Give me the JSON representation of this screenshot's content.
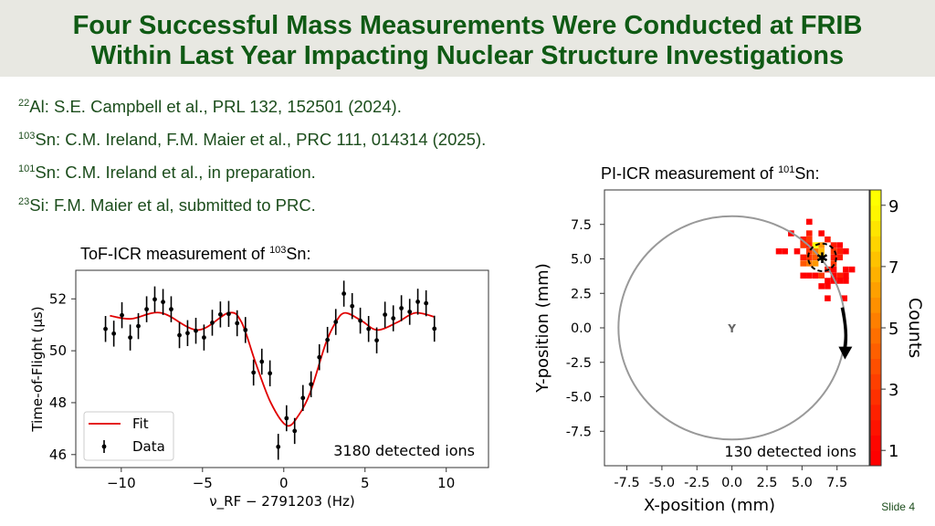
{
  "header": {
    "title_line1": "Four Successful Mass Measurements Were Conducted at FRIB",
    "title_line2": "Within Last Year Impacting Nuclear Structure Investigations"
  },
  "references": [
    {
      "mass": "22",
      "text": "Al: S.E. Campbell et al., PRL 132, 152501 (2024)."
    },
    {
      "mass": "103",
      "text": "Sn: C.M. Ireland, F.M. Maier et al., PRC 111, 014314 (2025)."
    },
    {
      "mass": "101",
      "text": "Sn: C.M. Ireland et al., in preparation."
    },
    {
      "mass": "23",
      "text": "Si: F.M. Maier et al, submitted to PRC."
    }
  ],
  "tof_caption": {
    "text": "ToF-ICR measurement of ",
    "mass": "103",
    "element": "Sn:"
  },
  "pi_caption": {
    "text": "PI-ICR measurement of ",
    "mass": "101",
    "element": "Sn:"
  },
  "slide_number": "Slide 4",
  "colors": {
    "title": "#0f5a14",
    "text": "#1c4d1c",
    "fit": "#e00000",
    "data": "#000000",
    "circle": "#999999"
  },
  "chart_data": [
    {
      "type": "scatter",
      "xlabel": "ν_RF − 2791203 (Hz)",
      "ylabel": "Time-of-Flight (μs)",
      "xlim": [
        -12.8,
        12.6
      ],
      "ylim": [
        45.5,
        53.1
      ],
      "xticks": [
        -10,
        -5,
        0,
        5,
        10
      ],
      "yticks": [
        46,
        48,
        50,
        52
      ],
      "legend": {
        "placement": "bottom-left",
        "entries": [
          "Fit",
          "Data"
        ]
      },
      "annotation": "3180 detected ions",
      "series": [
        {
          "name": "Data",
          "x": [
            -10.97,
            -10.46,
            -9.96,
            -9.45,
            -8.95,
            -8.44,
            -7.94,
            -7.43,
            -6.93,
            -6.42,
            -5.92,
            -5.41,
            -4.91,
            -4.4,
            -3.9,
            -3.39,
            -2.87,
            -2.36,
            -1.86,
            -1.35,
            -0.85,
            -0.34,
            0.17,
            0.67,
            1.18,
            1.68,
            2.19,
            2.69,
            3.2,
            3.7,
            4.21,
            4.71,
            5.22,
            5.72,
            6.23,
            6.74,
            7.24,
            7.75,
            8.25,
            8.76,
            9.27
          ],
          "y": [
            50.84,
            50.66,
            51.37,
            50.51,
            50.95,
            51.6,
            51.98,
            51.88,
            51.6,
            50.6,
            50.68,
            50.77,
            50.51,
            51.08,
            51.4,
            51.42,
            51.06,
            50.8,
            49.16,
            49.58,
            49.13,
            46.3,
            47.4,
            46.91,
            48.18,
            48.71,
            49.75,
            50.42,
            51.11,
            52.2,
            51.72,
            51.16,
            50.84,
            50.4,
            51.39,
            51.25,
            51.64,
            51.5,
            51.89,
            51.83,
            50.85
          ],
          "yerr": 0.5
        },
        {
          "name": "Fit",
          "x": [
            -10.7,
            -9.4,
            -7.55,
            -5.3,
            -3.4,
            -2.6,
            -1.74,
            -0.8,
            0.18,
            0.9,
            1.63,
            2.57,
            3.2,
            3.78,
            4.8,
            5.75,
            7.0,
            8.09,
            9.3
          ],
          "y": [
            51.35,
            51.23,
            51.46,
            50.8,
            51.46,
            51.1,
            49.55,
            48.0,
            47.12,
            47.5,
            48.39,
            50.26,
            51.1,
            51.46,
            51.15,
            50.8,
            51.1,
            51.46,
            51.3
          ]
        }
      ]
    },
    {
      "type": "heatmap",
      "xlabel": "X-position (mm)",
      "ylabel": "Y-position (mm)",
      "xlim": [
        -9.1,
        9.8
      ],
      "ylim": [
        -10,
        10
      ],
      "xticks": [
        "-7.5",
        "-5.0",
        "-2.5",
        "0.0",
        "2.5",
        "5.0",
        "7.5"
      ],
      "yticks": [
        "7.5",
        "5.0",
        "2.5",
        "0.0",
        "-2.5",
        "-5.0",
        "-7.5"
      ],
      "colorbar": {
        "label": "Counts",
        "range": [
          0.5,
          9.5
        ],
        "ticks": [
          1,
          3,
          5,
          7,
          9
        ]
      },
      "annotation": "130 detected ions",
      "circle": {
        "center": [
          0,
          0
        ],
        "radius": 8.1
      },
      "center_marker": [
        0,
        0
      ],
      "spot_center": [
        6.44,
        5.11
      ],
      "spot_ellipse_radius": 1.0,
      "arrow": {
        "from": [
          7.87,
          1.47
        ],
        "to": [
          8.13,
          -2.16
        ]
      },
      "cell_size": 0.43,
      "cells": [
        [
          5.52,
          7.69,
          1
        ],
        [
          4.22,
          6.85,
          1
        ],
        [
          5.52,
          6.85,
          2
        ],
        [
          6.39,
          6.85,
          1
        ],
        [
          5.09,
          6.41,
          2
        ],
        [
          5.52,
          6.41,
          3
        ],
        [
          6.83,
          6.41,
          2
        ],
        [
          5.09,
          5.99,
          3
        ],
        [
          5.52,
          5.99,
          2
        ],
        [
          5.96,
          5.99,
          9
        ],
        [
          6.39,
          5.99,
          6
        ],
        [
          7.26,
          5.99,
          2
        ],
        [
          7.7,
          5.99,
          1
        ],
        [
          3.35,
          5.55,
          1
        ],
        [
          3.78,
          5.55,
          1
        ],
        [
          4.65,
          5.55,
          1
        ],
        [
          5.52,
          5.55,
          3
        ],
        [
          5.96,
          5.55,
          5
        ],
        [
          6.39,
          5.55,
          7
        ],
        [
          7.26,
          5.55,
          3
        ],
        [
          7.7,
          5.55,
          2
        ],
        [
          8.13,
          5.55,
          1
        ],
        [
          5.09,
          5.11,
          2
        ],
        [
          5.52,
          5.11,
          3
        ],
        [
          5.96,
          5.11,
          4
        ],
        [
          6.39,
          5.11,
          8
        ],
        [
          7.26,
          5.11,
          2
        ],
        [
          7.7,
          5.11,
          2
        ],
        [
          5.09,
          4.67,
          4
        ],
        [
          5.52,
          4.67,
          5
        ],
        [
          5.96,
          4.67,
          6
        ],
        [
          7.26,
          4.67,
          3
        ],
        [
          6.83,
          4.23,
          2
        ],
        [
          7.26,
          4.23,
          1
        ],
        [
          8.13,
          4.23,
          1
        ],
        [
          8.57,
          4.23,
          1
        ],
        [
          5.09,
          3.79,
          1
        ],
        [
          5.52,
          3.79,
          1
        ],
        [
          5.96,
          3.79,
          1
        ],
        [
          6.39,
          3.79,
          3
        ],
        [
          7.26,
          3.79,
          1
        ],
        [
          7.7,
          3.79,
          2
        ],
        [
          8.13,
          3.79,
          1
        ],
        [
          6.83,
          3.41,
          1
        ],
        [
          7.26,
          3.41,
          1
        ],
        [
          7.7,
          3.41,
          1
        ],
        [
          8.13,
          3.41,
          1
        ],
        [
          6.39,
          3.02,
          1
        ],
        [
          6.83,
          3.02,
          1
        ],
        [
          6.83,
          2.14,
          1
        ],
        [
          8.02,
          2.14,
          1
        ]
      ]
    }
  ]
}
